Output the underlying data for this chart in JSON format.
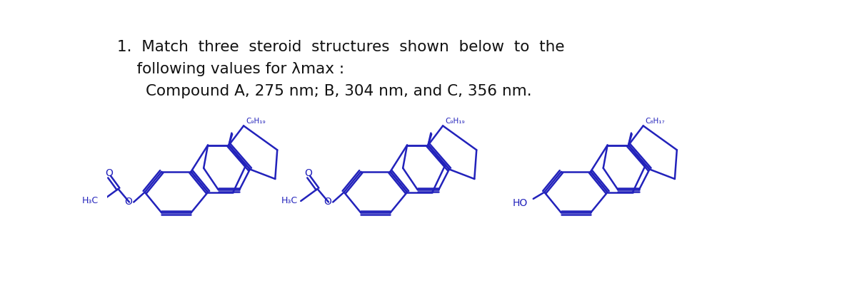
{
  "bg_color": "#ffffff",
  "text_color": "#111111",
  "struct_color": "#2222bb",
  "title_line1": "1.  Match  three  steroid  structures  shown  below  to  the",
  "title_line2": "    following values for λmax :",
  "subtitle": "Compound A, 275 nm; B, 304 nm, and C, 356 nm.",
  "label1": "C₉H₁₉",
  "label2": "C₉H₁₉",
  "label3": "C₈H₁₇",
  "bottom1": "H₃C",
  "bottom2": "H₃C",
  "bottom3": "HO",
  "fig_width": 12.0,
  "fig_height": 4.18,
  "dpi": 100
}
